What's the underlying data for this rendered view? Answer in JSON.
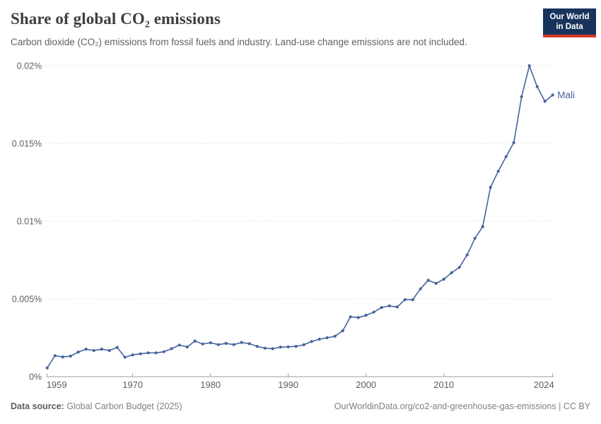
{
  "header": {
    "title": "Share of global CO₂ emissions",
    "subtitle": "Carbon dioxide (CO₂) emissions from fossil fuels and industry. Land-use change emissions are not included.",
    "logo": {
      "line1": "Our World",
      "line2": "in Data",
      "bg_color": "#18345d",
      "bar_color": "#d4372b"
    }
  },
  "footer": {
    "source_label": "Data source:",
    "source_value": " Global Carbon Budget (2025)",
    "credit": "OurWorldinData.org/co2-and-greenhouse-gas-emissions | CC BY"
  },
  "chart_data": {
    "type": "line",
    "series": [
      {
        "name": "Mali",
        "x": [
          1959,
          1960,
          1961,
          1962,
          1963,
          1964,
          1965,
          1966,
          1967,
          1968,
          1969,
          1970,
          1971,
          1972,
          1973,
          1974,
          1975,
          1976,
          1977,
          1978,
          1979,
          1980,
          1981,
          1982,
          1983,
          1984,
          1985,
          1986,
          1987,
          1988,
          1989,
          1990,
          1991,
          1992,
          1993,
          1994,
          1995,
          1996,
          1997,
          1998,
          1999,
          2000,
          2001,
          2002,
          2003,
          2004,
          2005,
          2006,
          2007,
          2008,
          2009,
          2010,
          2011,
          2012,
          2013,
          2014,
          2015,
          2016,
          2017,
          2018,
          2019,
          2020,
          2021,
          2022,
          2023,
          2024
        ],
        "values": [
          0.00056,
          0.00135,
          0.00127,
          0.00132,
          0.00158,
          0.00177,
          0.00168,
          0.00177,
          0.00168,
          0.00188,
          0.00125,
          0.0014,
          0.00147,
          0.00153,
          0.00153,
          0.0016,
          0.0018,
          0.00203,
          0.00191,
          0.00229,
          0.0021,
          0.00218,
          0.00206,
          0.00214,
          0.00206,
          0.0022,
          0.00212,
          0.00195,
          0.00183,
          0.0018,
          0.0019,
          0.00192,
          0.00195,
          0.00205,
          0.00226,
          0.00241,
          0.0025,
          0.0026,
          0.00295,
          0.00385,
          0.0038,
          0.00395,
          0.00415,
          0.00445,
          0.00455,
          0.00448,
          0.00495,
          0.00495,
          0.00565,
          0.0062,
          0.006,
          0.00627,
          0.00668,
          0.00703,
          0.00783,
          0.0089,
          0.00965,
          0.01218,
          0.01321,
          0.01415,
          0.01506,
          0.01801,
          0.02,
          0.01865,
          0.01771,
          0.01812
        ]
      }
    ],
    "line_color": "#47639e",
    "marker": "circle",
    "xlim": [
      1959,
      2024
    ],
    "ylim": [
      0,
      0.02
    ],
    "x_ticks": [
      1959,
      1970,
      1980,
      1990,
      2000,
      2010,
      2024
    ],
    "y_ticks": [
      {
        "value": 0,
        "label": "0%"
      },
      {
        "value": 0.005,
        "label": "0.005%"
      },
      {
        "value": 0.01,
        "label": "0.01%"
      },
      {
        "value": 0.015,
        "label": "0.015%"
      },
      {
        "value": 0.02,
        "label": "0.02%"
      }
    ],
    "grid": "horizontal-dashed",
    "legend_position": "end-of-line",
    "axis_color": "#9e9e9e",
    "grid_color": "#dcdcdc",
    "tick_label_color": "#5f5f5f"
  }
}
